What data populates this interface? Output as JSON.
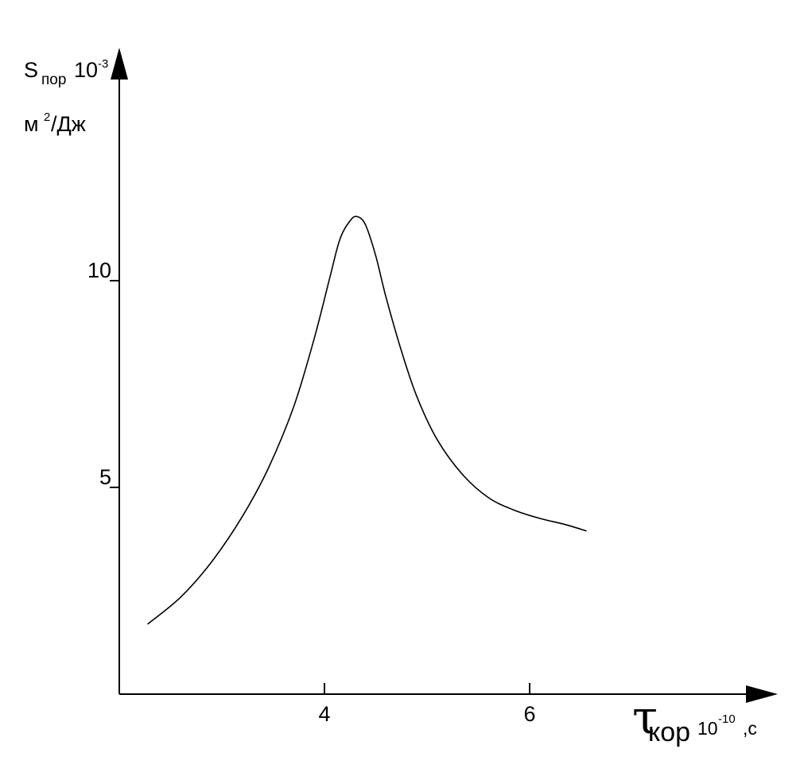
{
  "chart_data": {
    "type": "line",
    "title": "",
    "ylabel": {
      "symbol": "S",
      "subscript": "пор",
      "multiplier": "10",
      "multiplier_exponent": "-3",
      "unit_base": "м",
      "unit_exponent": "2",
      "unit_rest": "/Дж"
    },
    "xlabel": {
      "symbol": "τ",
      "subscript": "кор",
      "multiplier": "10",
      "multiplier_exponent": "-10",
      "unit": ",с"
    },
    "x_ticks": [
      {
        "value": 4,
        "label": "4"
      },
      {
        "value": 6,
        "label": "6"
      }
    ],
    "y_ticks": [
      {
        "value": 5,
        "label": "5"
      },
      {
        "value": 10,
        "label": "10"
      }
    ],
    "xlim": [
      2,
      8.5
    ],
    "ylim": [
      0,
      15.3
    ],
    "grid": false,
    "legend": "none",
    "line_color": "#000000",
    "series": [
      {
        "x": [
          2.28,
          2.6,
          2.9,
          3.2,
          3.45,
          3.7,
          3.9,
          4.05,
          4.15,
          4.25,
          4.32,
          4.4,
          4.5,
          4.6,
          4.75,
          4.9,
          5.1,
          5.35,
          5.6,
          5.85,
          6.1,
          6.35,
          6.55
        ],
        "y": [
          1.7,
          2.35,
          3.2,
          4.3,
          5.45,
          6.95,
          8.6,
          10.05,
          11.0,
          11.45,
          11.55,
          11.35,
          10.6,
          9.6,
          8.3,
          7.2,
          6.15,
          5.3,
          4.75,
          4.45,
          4.25,
          4.1,
          3.95
        ]
      }
    ]
  }
}
